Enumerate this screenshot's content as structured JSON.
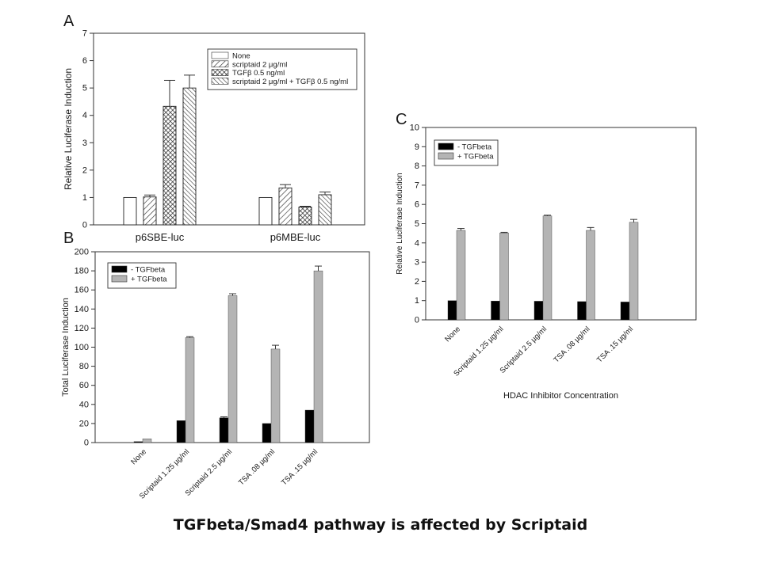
{
  "caption": "TGFbeta/Smad4 pathway is affected by Scriptaid",
  "chart_data": [
    {
      "panel": "A",
      "type": "bar",
      "ylabel": "Relative Luciferase Induction",
      "ylim": [
        0,
        7
      ],
      "yticks": [
        0,
        1,
        2,
        3,
        4,
        5,
        6,
        7
      ],
      "categories": [
        "p6SBE-luc",
        "p6MBE-luc"
      ],
      "legend_position": "top-right",
      "series": [
        {
          "name": "None",
          "pattern": "none",
          "values": [
            1.0,
            1.0
          ],
          "errors": [
            0,
            0
          ]
        },
        {
          "name": "scriptaid 2 μg/ml",
          "pattern": "diag",
          "values": [
            1.02,
            1.35
          ],
          "errors": [
            0.07,
            0.12
          ]
        },
        {
          "name": "TGFβ 0.5 ng/ml",
          "pattern": "cross",
          "values": [
            4.33,
            0.65
          ],
          "errors": [
            0.95,
            0.03
          ]
        },
        {
          "name": "scriptaid 2 μg/ml + TGFβ 0.5 ng/ml",
          "pattern": "diag-dense",
          "values": [
            5.0,
            1.1
          ],
          "errors": [
            0.47,
            0.1
          ]
        }
      ]
    },
    {
      "panel": "B",
      "type": "bar",
      "ylabel": "Total Luciferase Induction",
      "ylim": [
        0,
        200
      ],
      "yticks": [
        0,
        20,
        40,
        60,
        80,
        100,
        120,
        140,
        160,
        180,
        200
      ],
      "categories": [
        "None",
        "Scriptaid 1.25 µg/ml",
        "Scriptaid 2.5 µg/ml",
        "TSA .08 µg/ml",
        "TSA .15 µg/ml"
      ],
      "legend_position": "top-left",
      "series": [
        {
          "name": "- TGFbeta",
          "color": "#000000",
          "values": [
            1,
            23,
            26,
            20,
            34
          ],
          "errors": [
            0,
            0,
            1,
            0,
            0
          ]
        },
        {
          "name": "+ TGFbeta",
          "color": "#b4b4b4",
          "values": [
            4,
            110,
            154,
            98,
            180
          ],
          "errors": [
            0,
            1,
            2,
            4,
            5
          ]
        }
      ]
    },
    {
      "panel": "C",
      "type": "bar",
      "ylabel": "Relative Luciferase Induction",
      "xlabel": "HDAC Inhibitor Concentration",
      "ylim": [
        0,
        10
      ],
      "yticks": [
        0,
        1,
        2,
        3,
        4,
        5,
        6,
        7,
        8,
        9,
        10
      ],
      "categories": [
        "None",
        "Scriptaid 1.25 µg/ml",
        "Scriptaid 2.5 µg/ml",
        "TSA .08 µg/ml",
        "TSA .15 µg/ml"
      ],
      "legend_position": "top-left",
      "series": [
        {
          "name": "- TGFbeta",
          "color": "#000000",
          "values": [
            1.0,
            0.98,
            0.97,
            0.95,
            0.93
          ],
          "errors": [
            0,
            0,
            0,
            0,
            0
          ]
        },
        {
          "name": "+ TGFbeta",
          "color": "#b4b4b4",
          "values": [
            4.65,
            4.52,
            5.4,
            4.65,
            5.07
          ],
          "errors": [
            0.1,
            0.03,
            0.04,
            0.15,
            0.15
          ]
        }
      ]
    }
  ]
}
